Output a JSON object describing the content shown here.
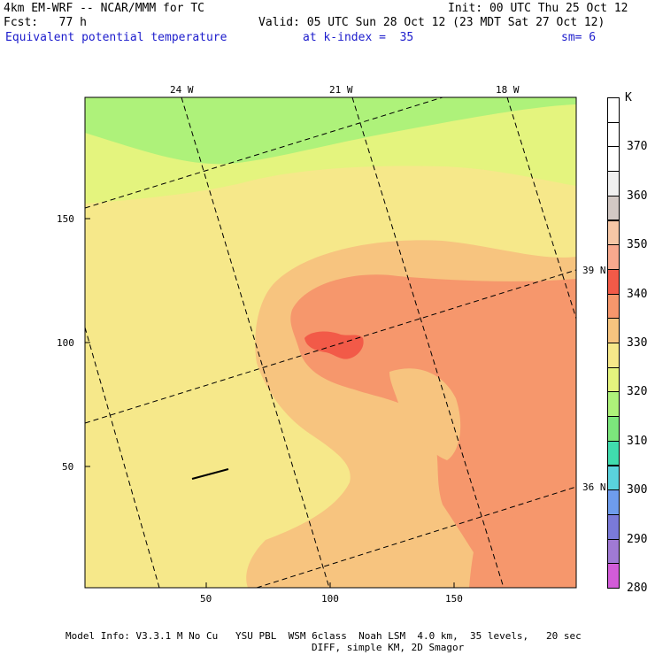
{
  "header": {
    "line1_left": "4km EM-WRF -- NCAR/MMM for TC",
    "line1_right": "Init: 00 UTC Thu 25 Oct 12",
    "line2_left": "Fcst:   77 h",
    "line2_right": "Valid: 05 UTC Sun 28 Oct 12 (23 MDT Sat 27 Oct 12)",
    "field_name": "Equivalent potential temperature",
    "level": "at k-index =  35",
    "smoothing": "sm= 6"
  },
  "axes": {
    "x_ticks": [
      "50",
      "100",
      "150"
    ],
    "y_ticks": [
      "150",
      "100",
      "50"
    ],
    "lon_labels": [
      "24 W",
      "21 W",
      "18 W"
    ],
    "lat_labels": [
      "39 N",
      "36 N"
    ]
  },
  "colorbar": {
    "unit": "K",
    "labels": [
      "370",
      "360",
      "350",
      "340",
      "330",
      "320",
      "310",
      "300",
      "290",
      "280"
    ],
    "colors": [
      "#ffffff",
      "#ffffff",
      "#ffffff",
      "#f0f0f0",
      "#d2c8c4",
      "#f6c7a6",
      "#f8a98e",
      "#f25a48",
      "#f6976c",
      "#f7c47f",
      "#f6e88a",
      "#e4f47e",
      "#aef27a",
      "#7ce67c",
      "#40dcae",
      "#5ad2dc",
      "#6e9cec",
      "#7a7ad8",
      "#a07ad4",
      "#d25cd8"
    ]
  },
  "footer": {
    "line1": "Model Info: V3.3.1 M No Cu   YSU PBL  WSM 6class  Noah LSM  4.0 km,  35 levels,   20 sec",
    "line2": "DIFF, simple KM, 2D Smagor"
  }
}
